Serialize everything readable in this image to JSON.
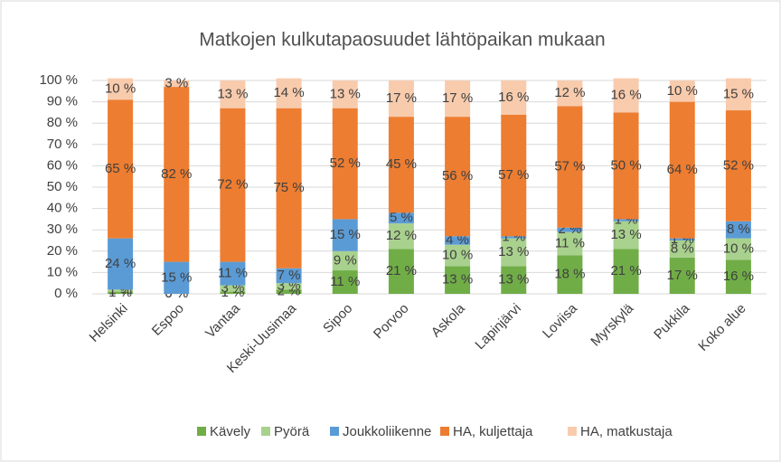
{
  "chart_data": {
    "type": "stacked_bar",
    "title": "Matkojen kulkutapaosuudet lähtöpaikan mukaan",
    "categories": [
      "Helsinki",
      "Espoo",
      "Vantaa",
      "Keski-Uusimaa",
      "Sipoo",
      "Porvoo",
      "Askola",
      "Lapinjärvi",
      "Loviisa",
      "Myrskylä",
      "Pukkila",
      "Koko alue"
    ],
    "series": [
      {
        "name": "Kävely",
        "color": "#70ad47",
        "values": [
          1,
          0,
          1,
          2,
          11,
          21,
          13,
          13,
          18,
          21,
          17,
          16
        ],
        "value_labels": [
          "1 %",
          "0 %",
          "1 %",
          "2 %",
          "11 %",
          "21 %",
          "13 %",
          "13 %",
          "18 %",
          "21 %",
          "17 %",
          "16 %"
        ]
      },
      {
        "name": "Pyörä",
        "color": "#a9d18e",
        "values": [
          1,
          0,
          3,
          3,
          9,
          12,
          10,
          13,
          11,
          13,
          8,
          10
        ],
        "value_labels": [
          "1 %",
          "0 %",
          "3 %",
          "3 %",
          "9 %",
          "12 %",
          "10 %",
          "13 %",
          "11 %",
          "13 %",
          "8 %",
          "10 %"
        ]
      },
      {
        "name": "Joukkoliikenne",
        "color": "#5b9bd5",
        "values": [
          24,
          15,
          11,
          7,
          15,
          5,
          4,
          1,
          2,
          1,
          1,
          8
        ],
        "value_labels": [
          "24 %",
          "15 %",
          "11 %",
          "7 %",
          "15 %",
          "5 %",
          "4 %",
          "1 %",
          "2 %",
          "1 %",
          "1 %",
          "8 %"
        ]
      },
      {
        "name": "HA, kuljettaja",
        "color": "#ed7d31",
        "values": [
          65,
          82,
          72,
          75,
          52,
          45,
          56,
          57,
          57,
          50,
          64,
          52
        ],
        "value_labels": [
          "65 %",
          "82 %",
          "72 %",
          "75 %",
          "52 %",
          "45 %",
          "56 %",
          "57 %",
          "57 %",
          "50 %",
          "64 %",
          "52 %"
        ]
      },
      {
        "name": "HA, matkustaja",
        "color": "#f8cbad",
        "values": [
          10,
          3,
          13,
          14,
          13,
          17,
          17,
          16,
          12,
          16,
          10,
          15
        ],
        "value_labels": [
          "10 %",
          "3 %",
          "13 %",
          "14 %",
          "13 %",
          "17 %",
          "17 %",
          "16 %",
          "12 %",
          "16 %",
          "10 %",
          "15 %"
        ]
      }
    ],
    "ylim": [
      0,
      100
    ],
    "yticks": [
      {
        "value": 0,
        "label": "0 %"
      },
      {
        "value": 10,
        "label": "10 %"
      },
      {
        "value": 20,
        "label": "20 %"
      },
      {
        "value": 30,
        "label": "30 %"
      },
      {
        "value": 40,
        "label": "40 %"
      },
      {
        "value": 50,
        "label": "50 %"
      },
      {
        "value": 60,
        "label": "60 %"
      },
      {
        "value": 70,
        "label": "70 %"
      },
      {
        "value": 80,
        "label": "80 %"
      },
      {
        "value": 90,
        "label": "90 %"
      },
      {
        "value": 100,
        "label": "100 %"
      }
    ],
    "legend": "bottom"
  }
}
